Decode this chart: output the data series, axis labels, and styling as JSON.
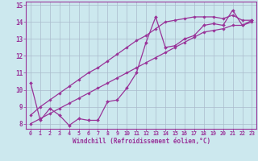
{
  "title": "",
  "xlabel": "Windchill (Refroidissement éolien,°C)",
  "background_color": "#cce8ee",
  "line_color": "#993399",
  "grid_color": "#aabbcc",
  "x_data": [
    0,
    1,
    2,
    3,
    4,
    5,
    6,
    7,
    8,
    9,
    10,
    11,
    12,
    13,
    14,
    15,
    16,
    17,
    18,
    19,
    20,
    21,
    22,
    23
  ],
  "y_main": [
    10.4,
    8.2,
    8.9,
    8.5,
    7.9,
    8.3,
    8.2,
    8.2,
    9.3,
    9.4,
    10.1,
    11.0,
    12.8,
    14.3,
    12.5,
    12.6,
    13.0,
    13.2,
    13.8,
    13.9,
    13.8,
    14.7,
    13.8,
    14.1
  ],
  "y_upper": [
    8.5,
    9.0,
    9.4,
    9.8,
    10.2,
    10.6,
    11.0,
    11.3,
    11.7,
    12.1,
    12.5,
    12.9,
    13.2,
    13.6,
    14.0,
    14.1,
    14.2,
    14.3,
    14.3,
    14.3,
    14.2,
    14.4,
    14.1,
    14.1
  ],
  "y_lower": [
    8.0,
    8.3,
    8.6,
    8.9,
    9.2,
    9.5,
    9.8,
    10.1,
    10.4,
    10.7,
    11.0,
    11.3,
    11.6,
    11.9,
    12.2,
    12.5,
    12.8,
    13.1,
    13.4,
    13.5,
    13.6,
    13.8,
    13.8,
    14.0
  ],
  "xlim": [
    -0.5,
    23.5
  ],
  "ylim": [
    7.7,
    15.2
  ],
  "yticks": [
    8,
    9,
    10,
    11,
    12,
    13,
    14,
    15
  ],
  "xticks": [
    0,
    1,
    2,
    3,
    4,
    5,
    6,
    7,
    8,
    9,
    10,
    11,
    12,
    13,
    14,
    15,
    16,
    17,
    18,
    19,
    20,
    21,
    22,
    23
  ],
  "xticklabels": [
    "0",
    "1",
    "2",
    "3",
    "4",
    "5",
    "6",
    "7",
    "8",
    "9",
    "10",
    "11",
    "12",
    "13",
    "14",
    "15",
    "16",
    "17",
    "18",
    "19",
    "20",
    "21",
    "22",
    "23"
  ]
}
